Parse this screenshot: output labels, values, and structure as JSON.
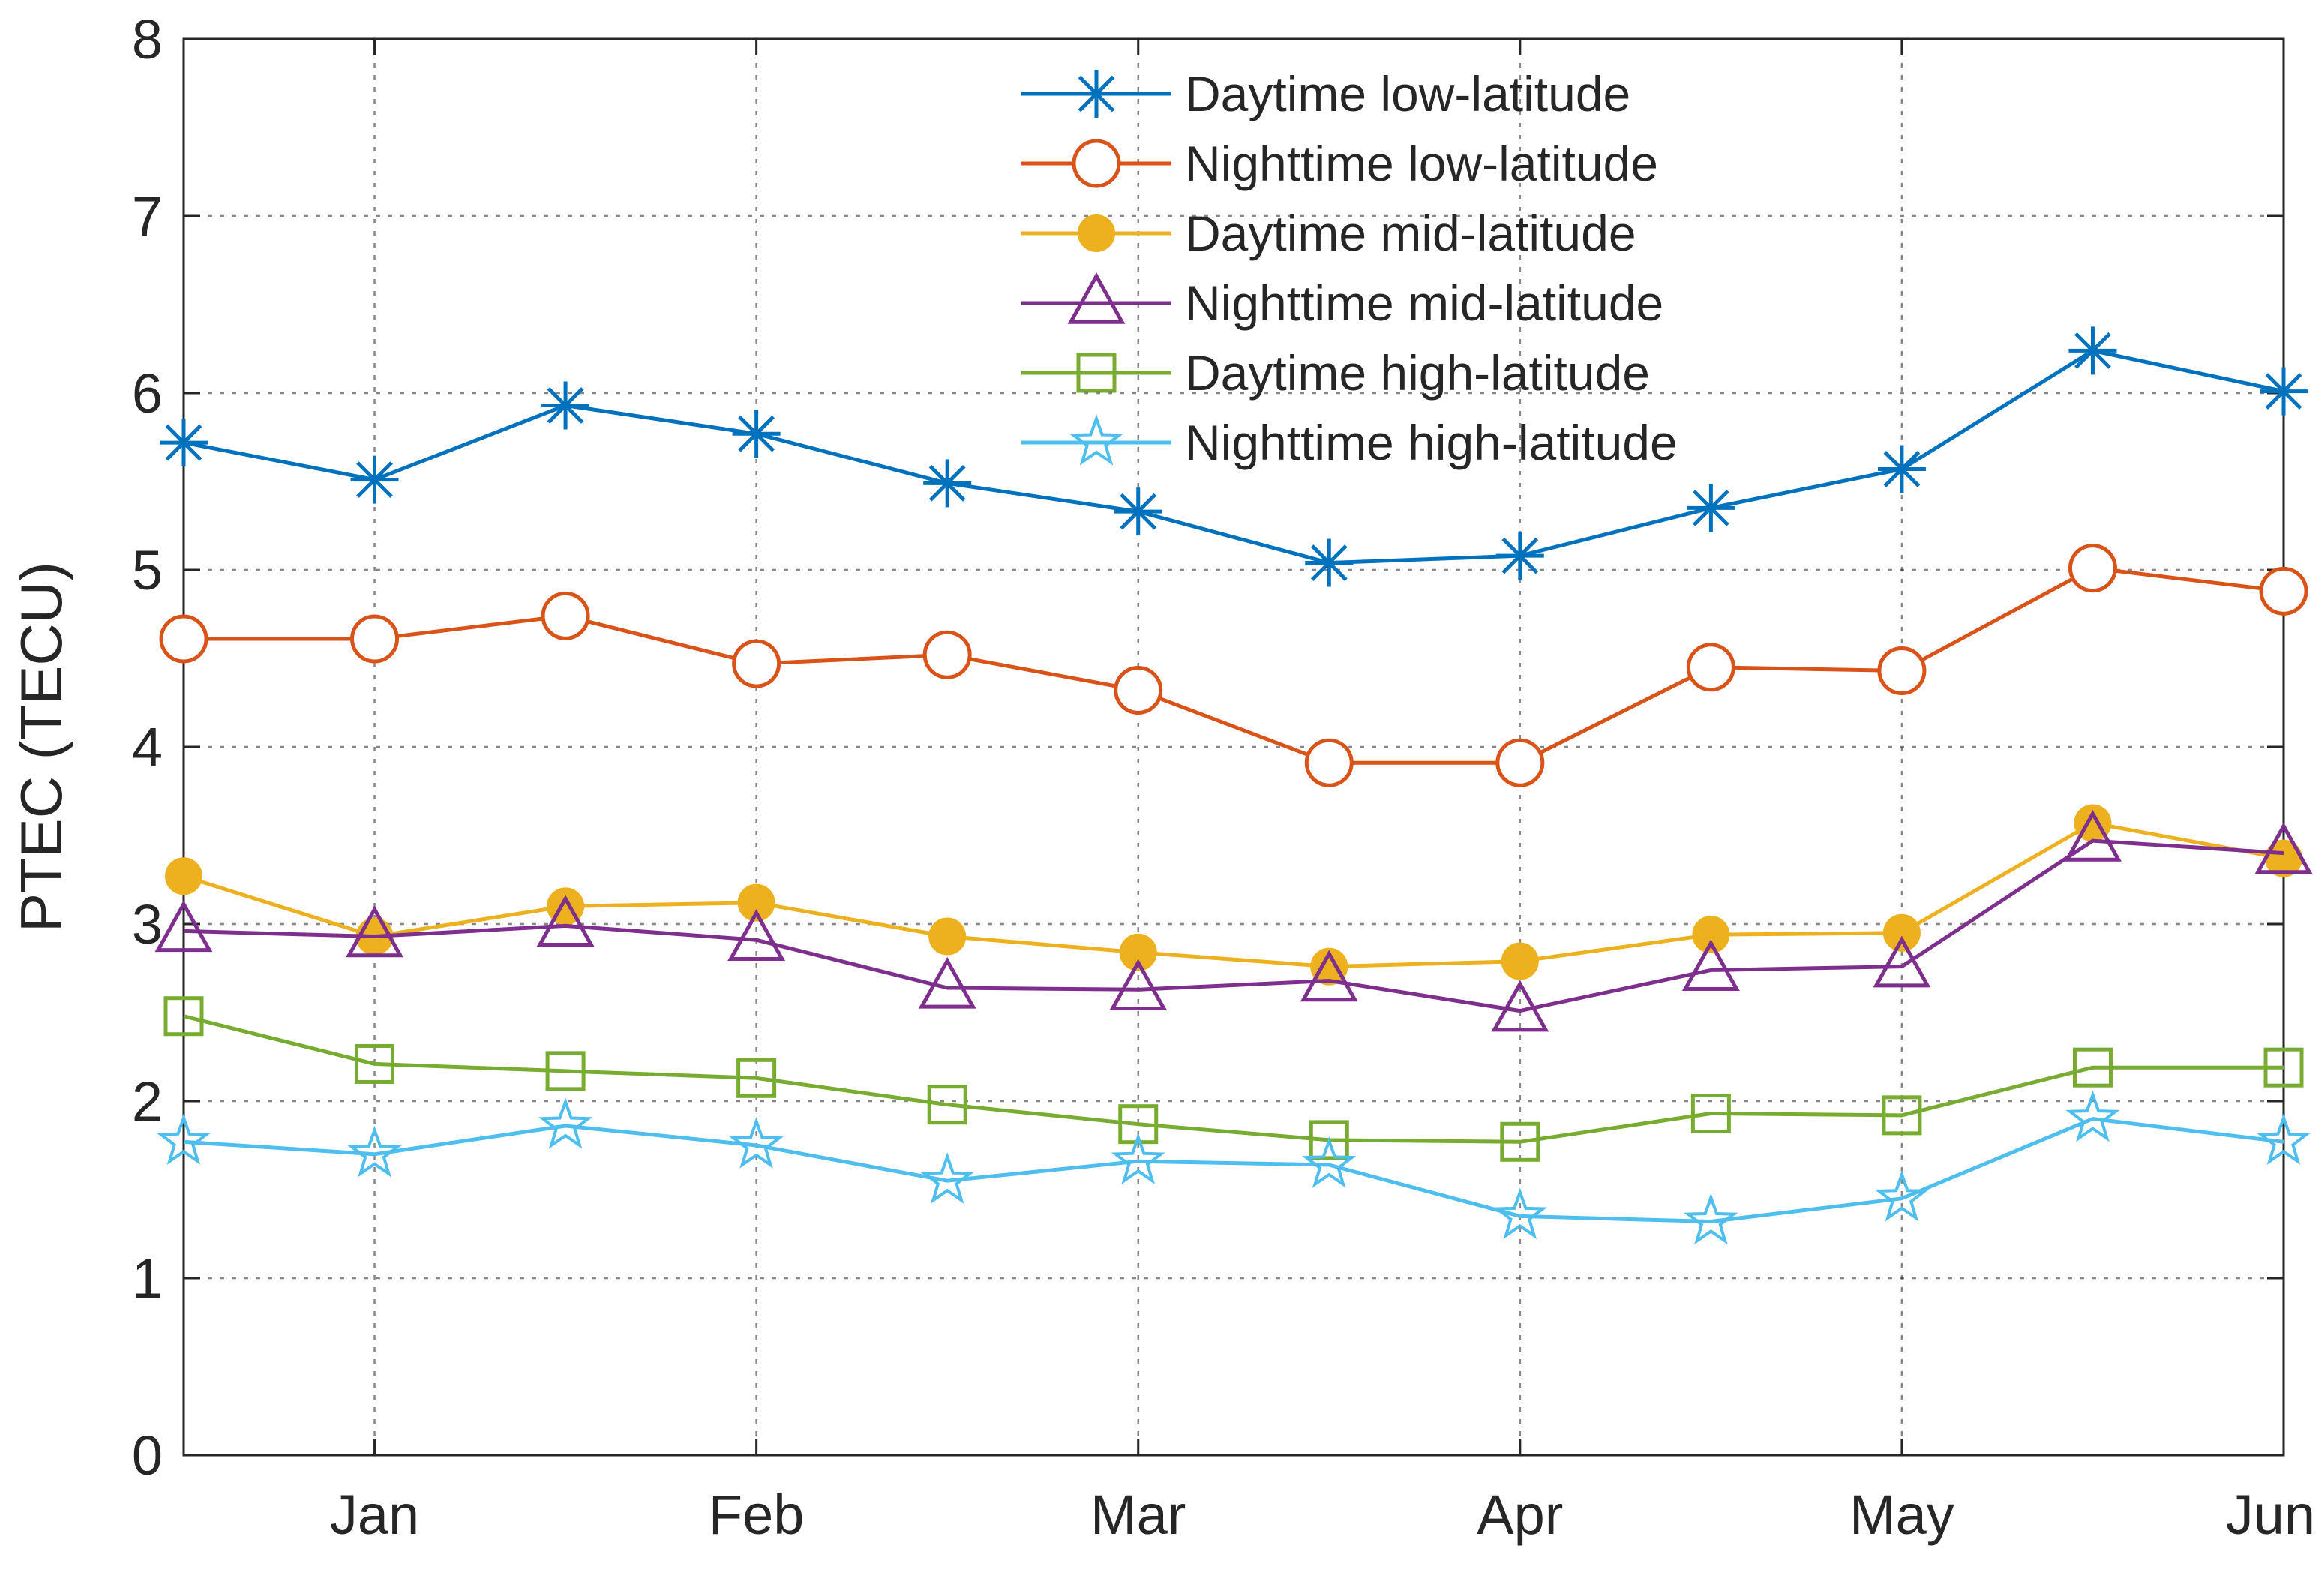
{
  "chart_data": {
    "type": "line",
    "title": "",
    "xlabel": "",
    "ylabel": "PTEC (TECU)",
    "ylim": [
      0,
      8
    ],
    "yticks": [
      "0",
      "1",
      "2",
      "3",
      "4",
      "5",
      "6",
      "7",
      "8"
    ],
    "xlim": [
      0,
      11
    ],
    "xticks": [
      {
        "x": 1,
        "label": "Jan"
      },
      {
        "x": 3,
        "label": "Feb"
      },
      {
        "x": 5,
        "label": "Mar"
      },
      {
        "x": 7,
        "label": "Apr"
      },
      {
        "x": 9,
        "label": "May"
      },
      {
        "x": 11,
        "label": "Jun"
      }
    ],
    "x": [
      0,
      1,
      2,
      3,
      4,
      5,
      6,
      7,
      8,
      9,
      10,
      11
    ],
    "grid": true,
    "legend_position": "top-right",
    "series": [
      {
        "name": "Daytime low-latitude",
        "color": "#0072BD",
        "marker": "asterisk",
        "values": [
          5.72,
          5.51,
          5.93,
          5.77,
          5.49,
          5.33,
          5.04,
          5.08,
          5.35,
          5.57,
          6.24,
          6.01
        ]
      },
      {
        "name": "Nighttime low-latitude",
        "color": "#D95319",
        "marker": "circle-open",
        "values": [
          4.61,
          4.61,
          4.74,
          4.47,
          4.52,
          4.32,
          3.91,
          3.91,
          4.45,
          4.43,
          5.01,
          4.88
        ]
      },
      {
        "name": "Daytime mid-latitude",
        "color": "#EDB120",
        "marker": "circle-filled",
        "values": [
          3.27,
          2.93,
          3.1,
          3.12,
          2.93,
          2.84,
          2.76,
          2.79,
          2.94,
          2.95,
          3.57,
          3.37
        ]
      },
      {
        "name": "Nighttime mid-latitude",
        "color": "#7E2F8E",
        "marker": "triangle-open",
        "values": [
          2.96,
          2.93,
          2.99,
          2.91,
          2.64,
          2.63,
          2.68,
          2.51,
          2.74,
          2.76,
          3.47,
          3.4
        ]
      },
      {
        "name": "Daytime high-latitude",
        "color": "#77AC30",
        "marker": "square-open",
        "values": [
          2.48,
          2.21,
          2.17,
          2.13,
          1.98,
          1.87,
          1.78,
          1.77,
          1.93,
          1.92,
          2.19,
          2.19
        ]
      },
      {
        "name": "Nighttime high-latitude",
        "color": "#4DBEEE",
        "marker": "star-open",
        "values": [
          1.77,
          1.7,
          1.86,
          1.75,
          1.55,
          1.66,
          1.64,
          1.35,
          1.32,
          1.45,
          1.9,
          1.77
        ]
      }
    ]
  }
}
